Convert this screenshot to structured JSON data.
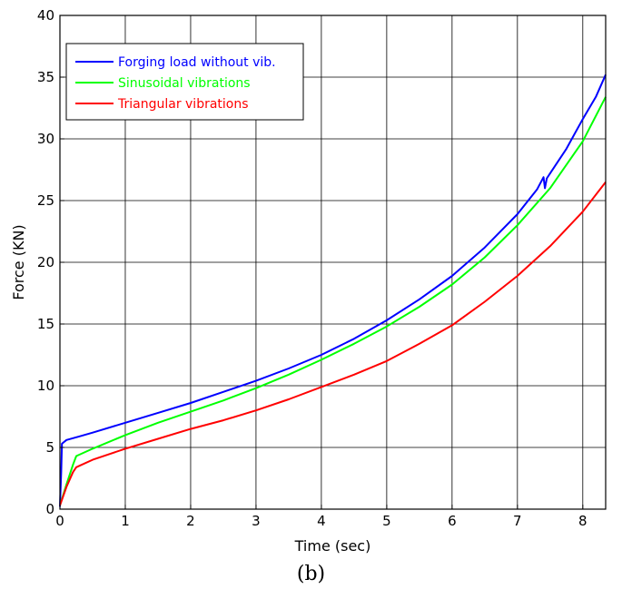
{
  "caption": "(b)",
  "chart_data": {
    "type": "line",
    "xlabel": "Time (sec)",
    "ylabel": "Force (KN)",
    "xlim": [
      0,
      8.35
    ],
    "ylim": [
      0,
      40
    ],
    "xticks": [
      0,
      1,
      2,
      3,
      4,
      5,
      6,
      7,
      8
    ],
    "yticks": [
      0,
      5,
      10,
      15,
      20,
      25,
      30,
      35,
      40
    ],
    "grid": true,
    "legend_position": "top-left",
    "series": [
      {
        "name": "Forging load without vib.",
        "color": "#0000ff",
        "x": [
          0.0,
          0.02,
          0.03,
          0.1,
          0.3,
          0.5,
          1.0,
          1.5,
          2.0,
          2.5,
          3.0,
          3.5,
          4.0,
          4.5,
          5.0,
          5.5,
          6.0,
          6.5,
          7.0,
          7.3,
          7.4,
          7.42,
          7.45,
          7.5,
          7.75,
          8.0,
          8.2,
          8.35
        ],
        "y": [
          0.2,
          3.0,
          5.3,
          5.6,
          5.9,
          6.2,
          7.0,
          7.8,
          8.6,
          9.5,
          10.4,
          11.4,
          12.5,
          13.8,
          15.3,
          17.0,
          18.9,
          21.2,
          23.9,
          25.9,
          26.9,
          26.0,
          26.8,
          27.2,
          29.2,
          31.6,
          33.4,
          35.2
        ]
      },
      {
        "name": "Sinusoidal vibrations",
        "color": "#00ff00",
        "x": [
          0.0,
          0.1,
          0.2,
          0.25,
          0.5,
          1.0,
          1.5,
          2.0,
          2.5,
          3.0,
          3.5,
          4.0,
          4.5,
          5.0,
          5.5,
          6.0,
          6.5,
          7.0,
          7.5,
          8.0,
          8.35
        ],
        "y": [
          0.3,
          2.0,
          3.6,
          4.3,
          4.9,
          6.0,
          7.0,
          7.9,
          8.8,
          9.8,
          10.9,
          12.1,
          13.4,
          14.8,
          16.4,
          18.2,
          20.4,
          23.0,
          26.0,
          29.8,
          33.4
        ]
      },
      {
        "name": "Triangular vibrations",
        "color": "#ff0000",
        "x": [
          0.0,
          0.1,
          0.2,
          0.25,
          0.5,
          1.0,
          1.5,
          2.0,
          2.5,
          3.0,
          3.5,
          4.0,
          4.5,
          5.0,
          5.5,
          6.0,
          6.5,
          7.0,
          7.5,
          8.0,
          8.35
        ],
        "y": [
          0.3,
          1.8,
          3.0,
          3.4,
          4.0,
          4.9,
          5.7,
          6.5,
          7.2,
          8.0,
          8.9,
          9.9,
          10.9,
          12.0,
          13.4,
          14.9,
          16.8,
          18.9,
          21.3,
          24.1,
          26.5
        ]
      }
    ]
  }
}
